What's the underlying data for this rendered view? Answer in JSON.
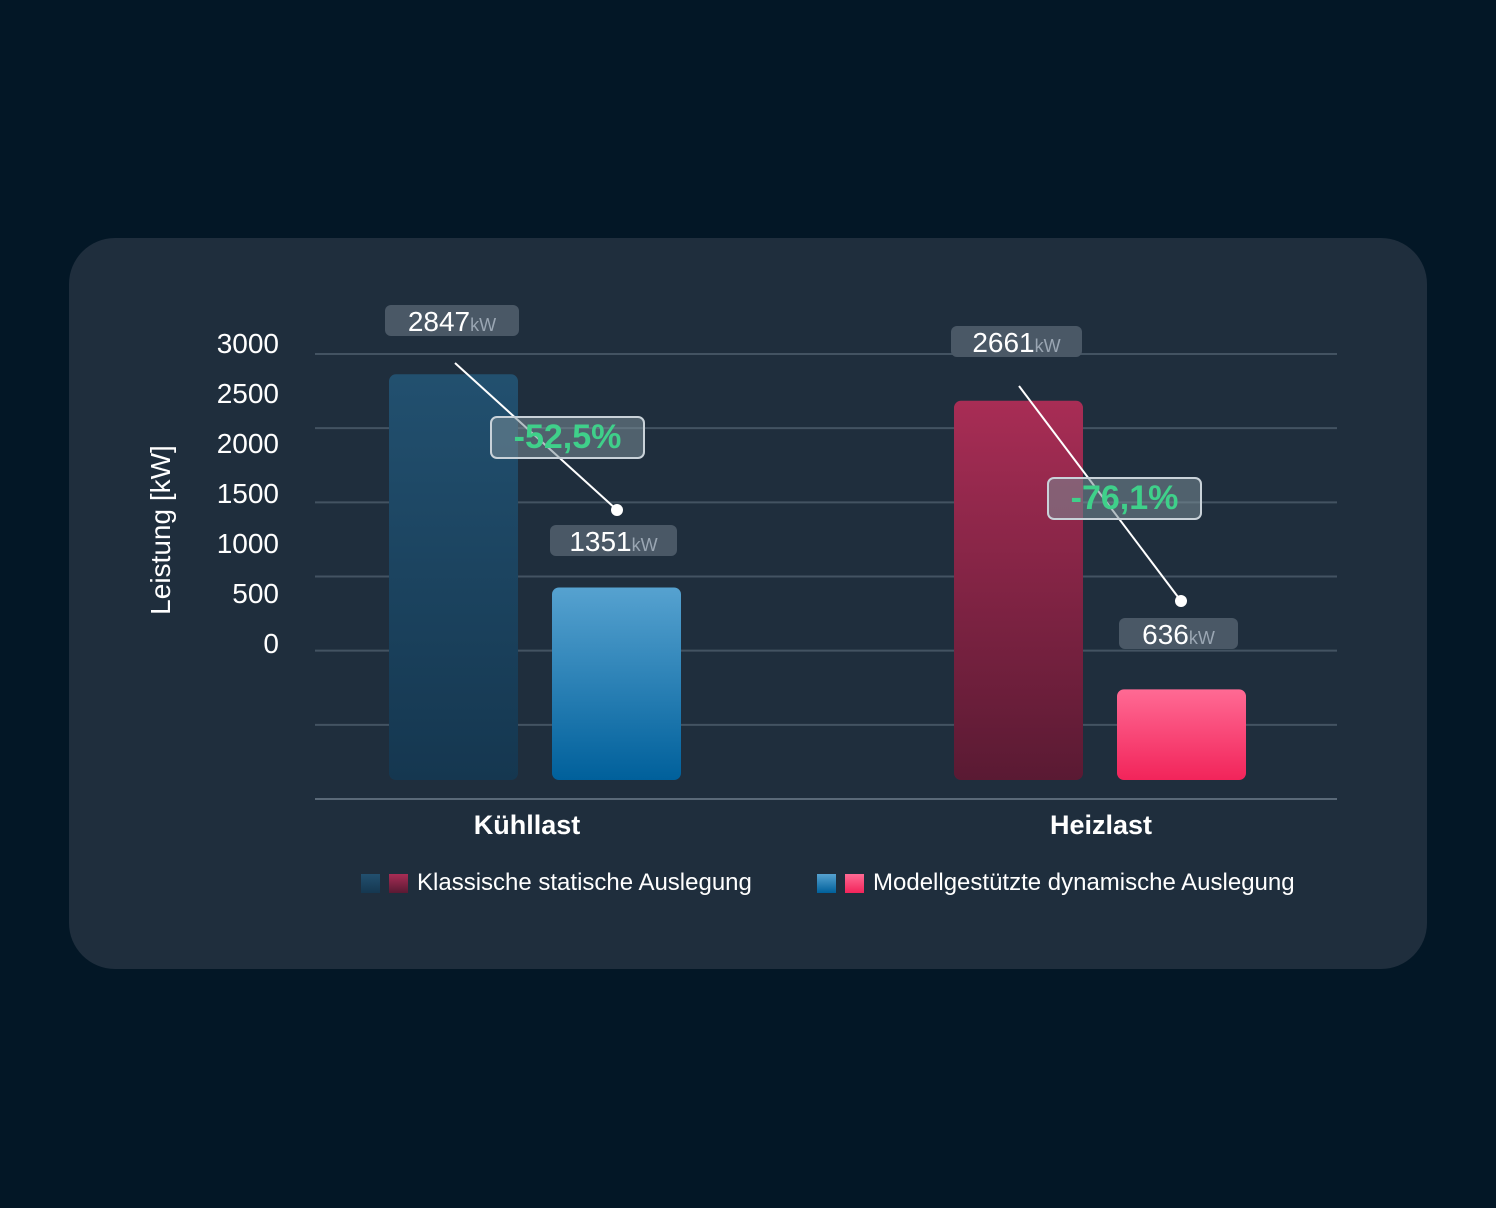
{
  "chart_data": {
    "type": "bar",
    "ylabel": "Leistung [kW]",
    "yticks": [
      0,
      500,
      1000,
      1500,
      2000,
      2500,
      3000
    ],
    "ylim": [
      0,
      3000
    ],
    "unit": "kW",
    "categories": [
      "Kühllast",
      "Heizlast"
    ],
    "series": [
      {
        "name": "Klassische statische Auslegung",
        "values": [
          2847,
          2661
        ],
        "colors": [
          "#1e4a6b",
          "#a32a52"
        ]
      },
      {
        "name": "Modellgestützte dynamische Auslegung",
        "values": [
          1351,
          636
        ],
        "colors": [
          "#1d7bb5",
          "#ff3d72"
        ]
      }
    ],
    "changes": [
      "-52,5%",
      "-76,1%"
    ],
    "value_labels": [
      [
        "2847",
        "1351"
      ],
      [
        "2661",
        "636"
      ]
    ],
    "change_color": "#3fd08a",
    "grid": true,
    "legend_position": "bottom"
  }
}
